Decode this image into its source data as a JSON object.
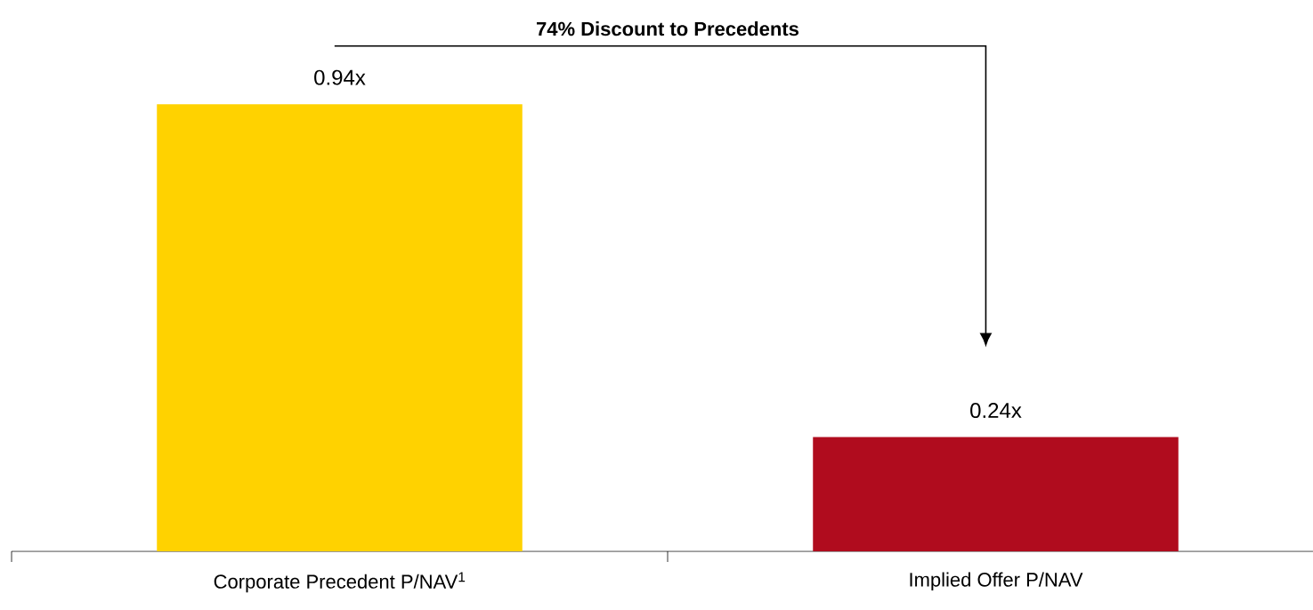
{
  "chart_data": {
    "type": "bar",
    "categories": [
      "Corporate Precedent P/NAV$^{1}$",
      "Implied Offer P/NAV"
    ],
    "values": [
      0.94,
      0.24
    ],
    "colors": [
      "#ffd200",
      "#b00c1e"
    ],
    "value_labels": [
      "0.94x",
      "0.24x"
    ],
    "annotations": [
      "74% Discount to Precedents"
    ]
  }
}
